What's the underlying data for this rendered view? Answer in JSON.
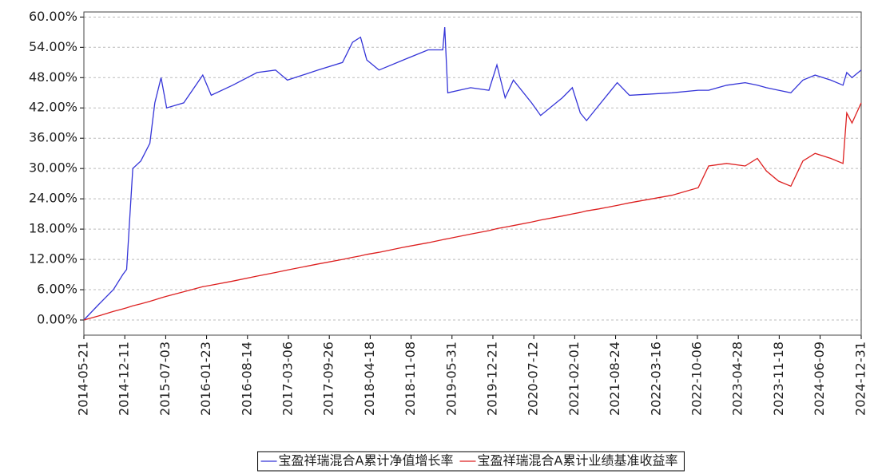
{
  "chart_data": {
    "type": "line",
    "x": [
      "2014-05-21",
      "2014-08-01",
      "2014-10-15",
      "2014-12-01",
      "2014-12-20",
      "2015-01-20",
      "2015-03-01",
      "2015-04-15",
      "2015-05-10",
      "2015-06-10",
      "2015-07-08",
      "2015-10-01",
      "2016-01-04",
      "2016-02-15",
      "2016-06-01",
      "2016-10-01",
      "2017-01-01",
      "2017-03-01",
      "2017-08-01",
      "2017-12-01",
      "2018-01-20",
      "2018-03-01",
      "2018-04-01",
      "2018-06-01",
      "2018-10-01",
      "2019-02-01",
      "2019-04-15",
      "2019-04-25",
      "2019-05-10",
      "2019-09-01",
      "2019-12-01",
      "2020-01-10",
      "2020-02-20",
      "2020-04-01",
      "2020-07-01",
      "2020-08-15",
      "2020-12-01",
      "2021-01-20",
      "2021-03-01",
      "2021-04-01",
      "2021-06-01",
      "2021-09-01",
      "2021-11-01",
      "2022-06-01",
      "2022-10-10",
      "2022-12-01",
      "2023-03-01",
      "2023-06-01",
      "2023-08-01",
      "2023-09-15",
      "2023-11-15",
      "2024-01-15",
      "2024-03-15",
      "2024-05-15",
      "2024-08-01",
      "2024-10-01",
      "2024-10-20",
      "2024-11-15",
      "2024-12-31"
    ],
    "series": [
      {
        "name": "宝盈祥瑞混合A累计净值增长率",
        "color": "#3535d8",
        "values": [
          0,
          3,
          6,
          9,
          10,
          30,
          31.5,
          35,
          43,
          48,
          42,
          43,
          48.5,
          44.5,
          46.5,
          49,
          49.5,
          47.5,
          49.5,
          51,
          55,
          56,
          51.5,
          49.5,
          51.5,
          53.5,
          53.5,
          58,
          45,
          46,
          45.5,
          50.5,
          44,
          47.5,
          43,
          40.5,
          44,
          46,
          41,
          39.5,
          42.5,
          47,
          44.5,
          45,
          45.5,
          45.5,
          46.5,
          47,
          46.5,
          46,
          45.5,
          45,
          47.5,
          48.5,
          47.5,
          46.5,
          49,
          48,
          49.5
        ]
      },
      {
        "name": "宝盈祥瑞混合A累计业绩基准收益率",
        "color": "#dd2020",
        "values": [
          0,
          0.8,
          1.7,
          2.2,
          2.4,
          2.8,
          3.2,
          3.7,
          4.0,
          4.4,
          4.7,
          5.6,
          6.6,
          6.9,
          7.7,
          8.7,
          9.4,
          9.9,
          11.1,
          12.0,
          12.4,
          12.7,
          13.0,
          13.4,
          14.4,
          15.3,
          15.9,
          16.0,
          16.1,
          17.0,
          17.7,
          18.1,
          18.4,
          18.7,
          19.4,
          19.8,
          20.6,
          21.0,
          21.3,
          21.6,
          22.0,
          22.7,
          23.2,
          24.7,
          26.2,
          30.5,
          31,
          30.5,
          32,
          29.5,
          27.5,
          26.5,
          31.5,
          33,
          32,
          31,
          41,
          39,
          43
        ]
      }
    ],
    "xlim": [
      "2014-05-21",
      "2024-12-31"
    ],
    "xticks": [
      "2014-05-21",
      "2014-12-11",
      "2015-07-03",
      "2016-01-23",
      "2016-08-14",
      "2017-03-06",
      "2017-09-26",
      "2018-04-18",
      "2018-11-08",
      "2019-05-31",
      "2019-12-21",
      "2020-07-12",
      "2021-02-01",
      "2021-08-24",
      "2022-03-16",
      "2022-10-06",
      "2023-04-28",
      "2023-11-18",
      "2024-06-09",
      "2024-12-31"
    ],
    "ylim": [
      -3,
      61
    ],
    "yticks": [
      {
        "value": 0,
        "label": "0.00%"
      },
      {
        "value": 6,
        "label": "6.00%"
      },
      {
        "value": 12,
        "label": "12.00%"
      },
      {
        "value": 18,
        "label": "18.00%"
      },
      {
        "value": 24,
        "label": "24.00%"
      },
      {
        "value": 30,
        "label": "30.00%"
      },
      {
        "value": 36,
        "label": "36.00%"
      },
      {
        "value": 42,
        "label": "42.00%"
      },
      {
        "value": 48,
        "label": "48.00%"
      },
      {
        "value": 54,
        "label": "54.00%"
      },
      {
        "value": 60,
        "label": "60.00%"
      }
    ],
    "grid": true,
    "legend": "bottom"
  }
}
